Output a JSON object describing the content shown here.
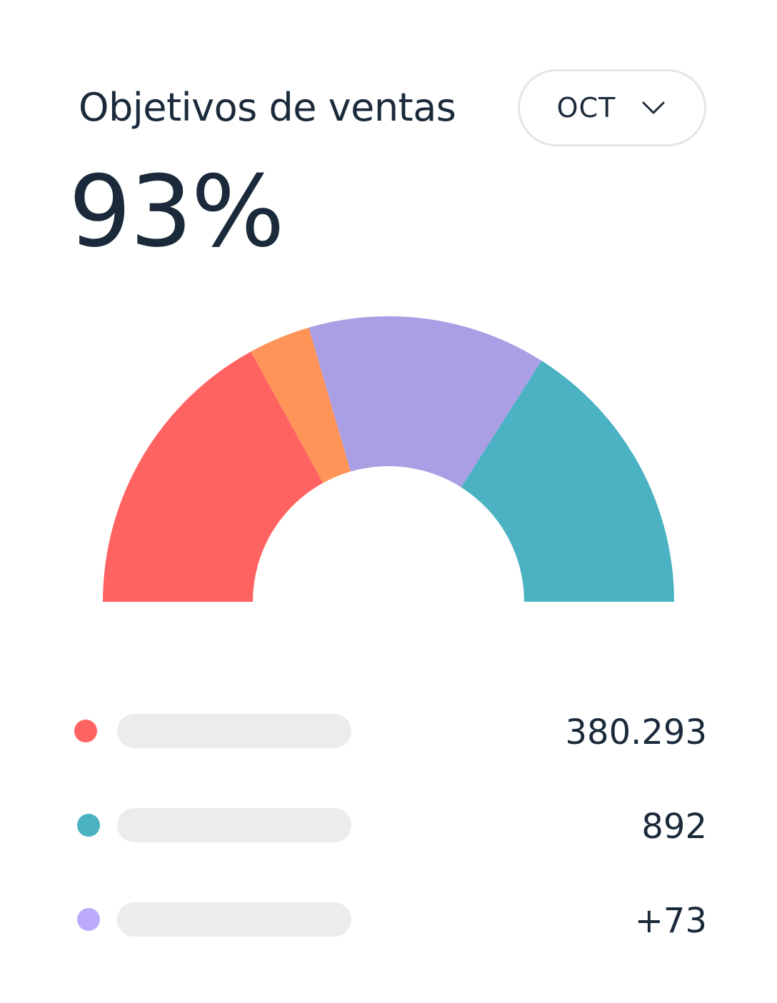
{
  "header": {
    "title": "Objetivos de ventas",
    "month_selector": {
      "selected": "OCT",
      "icon": "chevron-down-icon"
    }
  },
  "summary": {
    "percent": "93%"
  },
  "chart_data": {
    "type": "pie",
    "shape": "semicircle-donut",
    "segments": [
      {
        "color": "#ff6361",
        "value": 34
      },
      {
        "color": "#ff9458",
        "value": 7
      },
      {
        "color": "#aa9ee5",
        "value": 27
      },
      {
        "color": "#4ab2c3",
        "value": 32
      }
    ]
  },
  "legend": [
    {
      "color": "#ff6361",
      "value": "380.293"
    },
    {
      "color": "#4ab2c3",
      "value": "892"
    },
    {
      "color": "#bbaafc",
      "value": "+73"
    }
  ]
}
